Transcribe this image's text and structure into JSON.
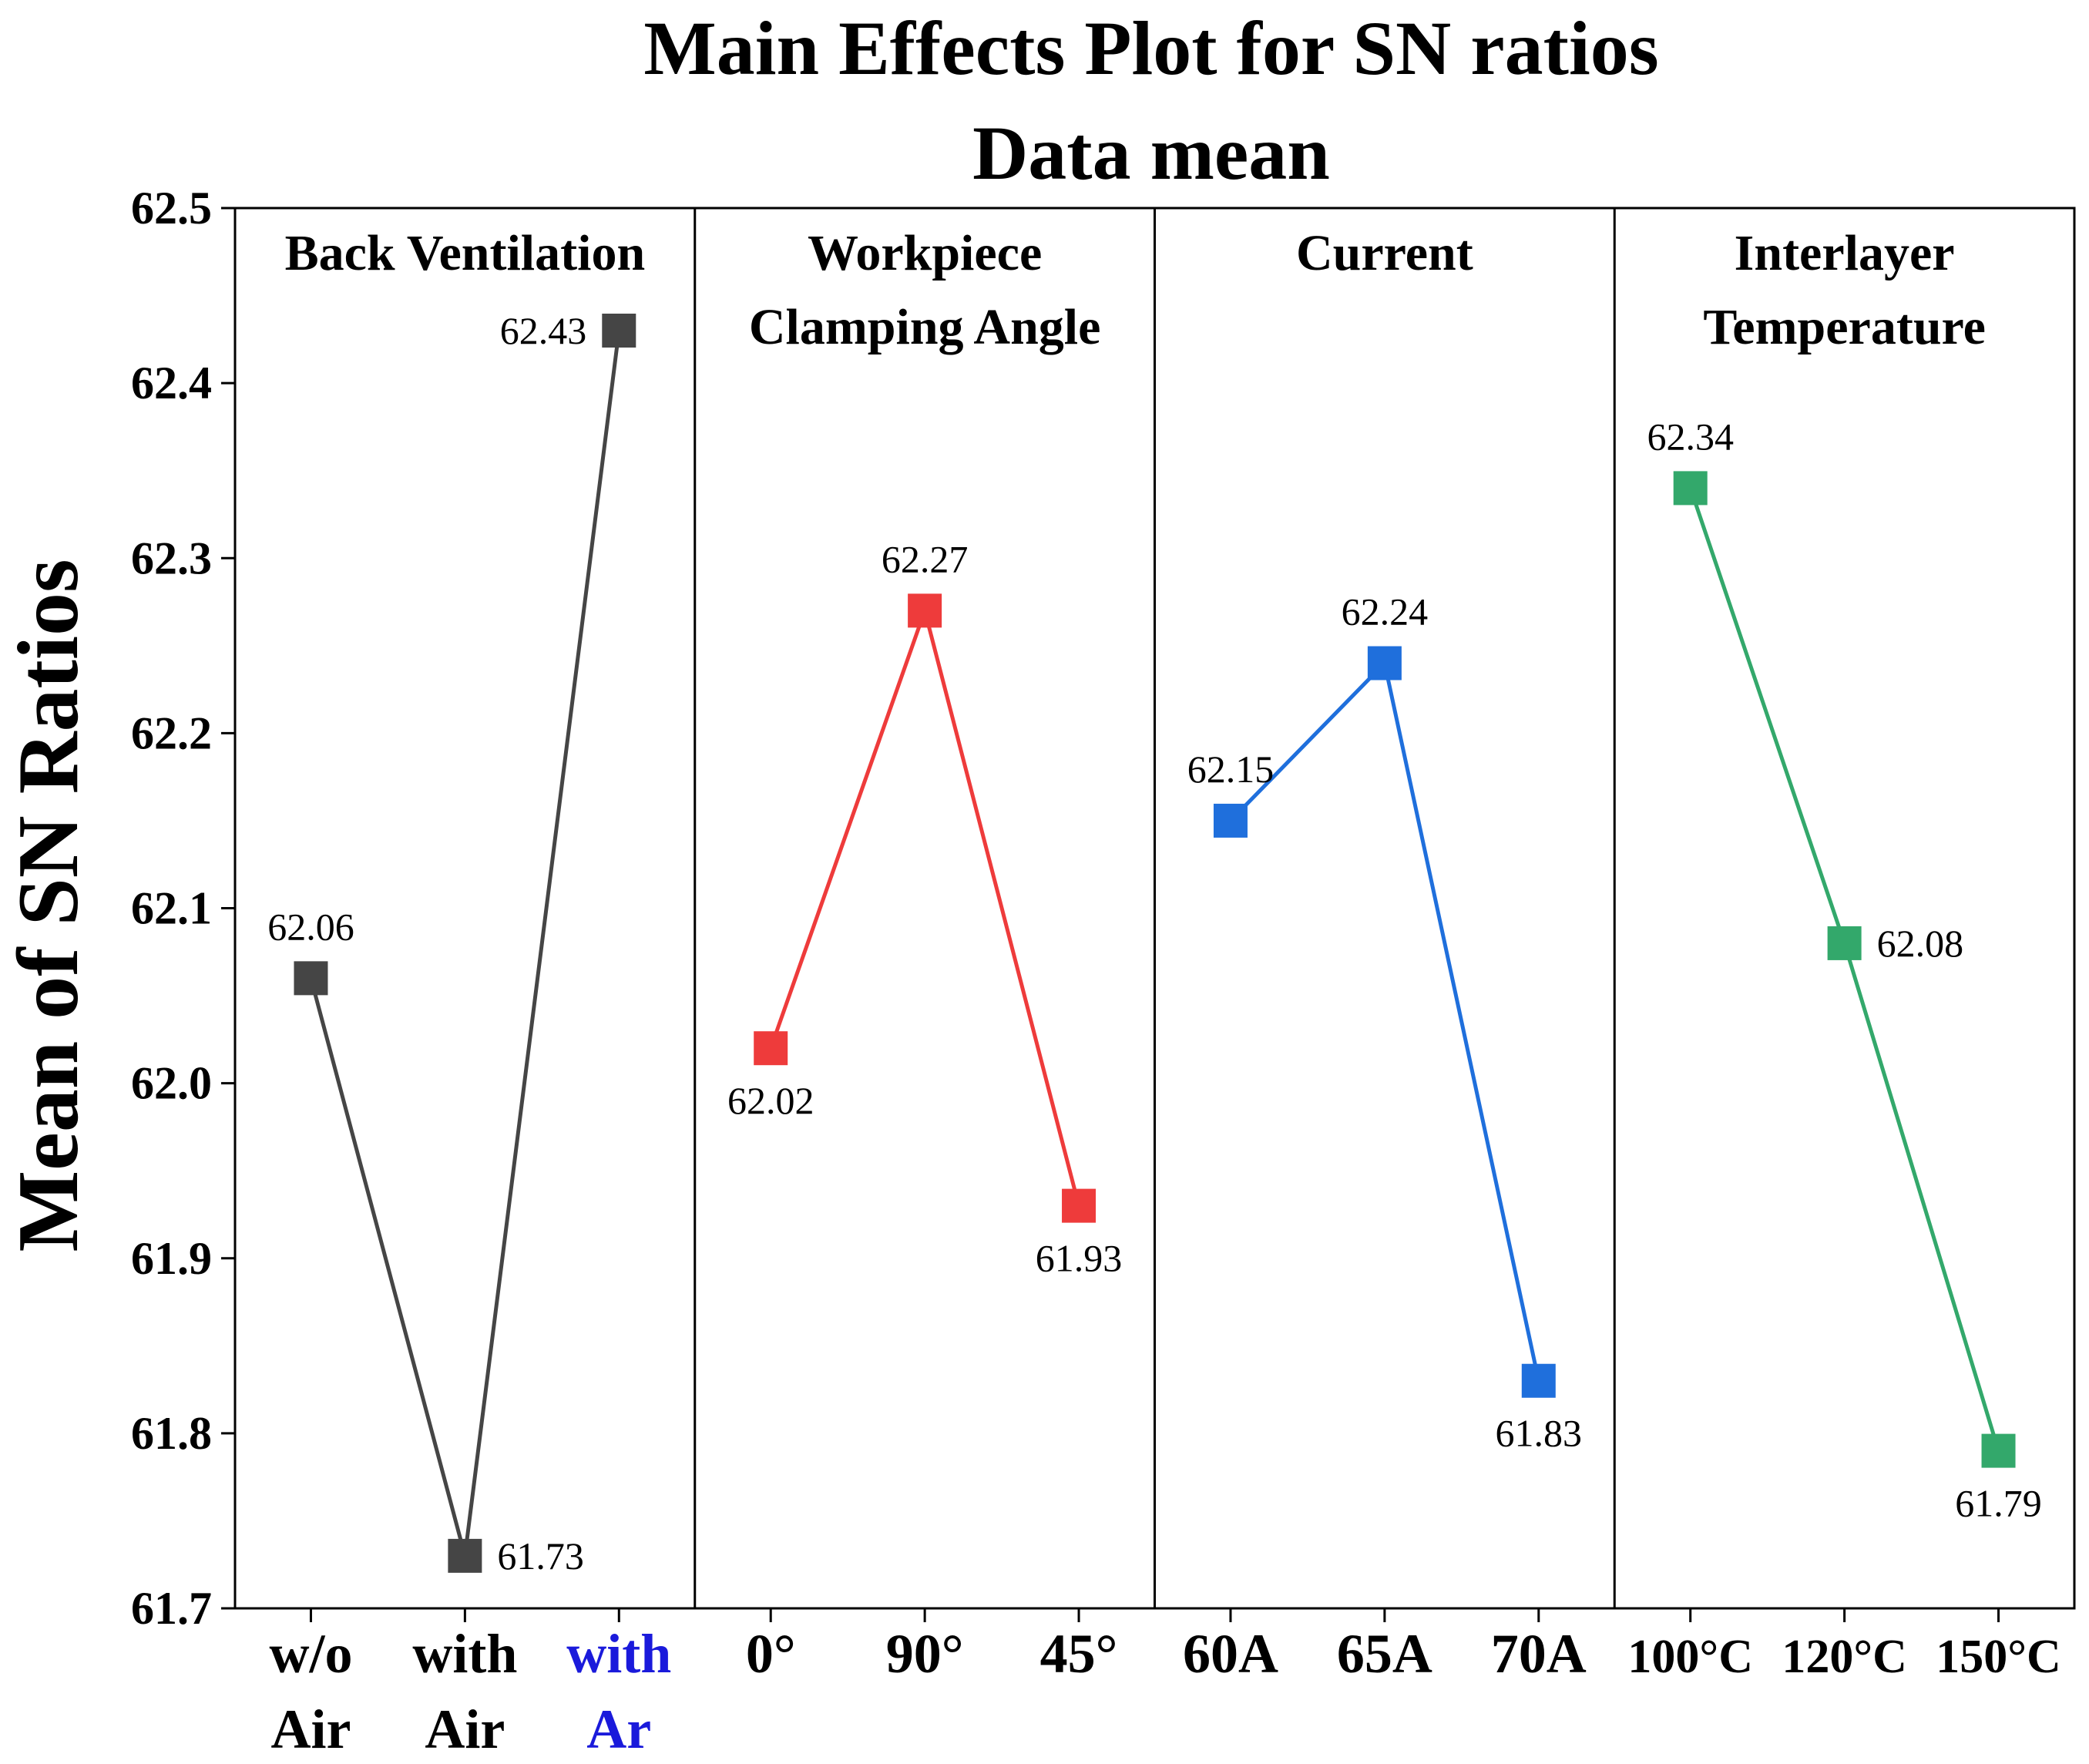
{
  "chart_data": {
    "type": "line",
    "title": "Main Effects Plot for SN ratios",
    "subtitle": "Data mean",
    "ylabel": "Mean of SN Ratios",
    "ylim": [
      61.7,
      62.5
    ],
    "yticks": [
      "61.7",
      "61.8",
      "61.9",
      "62.0",
      "62.1",
      "62.2",
      "62.3",
      "62.4",
      "62.5"
    ],
    "grid": false,
    "panels": [
      {
        "name": "Back Ventilation",
        "title_lines": [
          "Back Ventilation"
        ],
        "color": "#454545",
        "categories": [
          {
            "lines": [
              "w/o",
              "Air"
            ],
            "color": "#000000"
          },
          {
            "lines": [
              "with",
              "Air"
            ],
            "color": "#000000"
          },
          {
            "lines": [
              "with",
              "Ar"
            ],
            "color": "#1a1adb"
          }
        ],
        "values": [
          62.06,
          61.73,
          62.43
        ],
        "labels": [
          "62.06",
          "61.73",
          "62.43"
        ],
        "label_positions": [
          "above",
          "right",
          "left"
        ]
      },
      {
        "name": "Workpiece Clamping Angle",
        "title_lines": [
          "Workpiece",
          "Clamping Angle"
        ],
        "color": "#ee3b3b",
        "categories": [
          {
            "lines": [
              "0°"
            ],
            "color": "#000000"
          },
          {
            "lines": [
              "90°"
            ],
            "color": "#000000"
          },
          {
            "lines": [
              "45°"
            ],
            "color": "#000000"
          }
        ],
        "values": [
          62.02,
          62.27,
          61.93
        ],
        "labels": [
          "62.02",
          "62.27",
          "61.93"
        ],
        "label_positions": [
          "below",
          "above",
          "below"
        ]
      },
      {
        "name": "Current",
        "title_lines": [
          "Current"
        ],
        "color": "#1f6fdc",
        "categories": [
          {
            "lines": [
              "60A"
            ],
            "color": "#000000"
          },
          {
            "lines": [
              "65A"
            ],
            "color": "#000000"
          },
          {
            "lines": [
              "70A"
            ],
            "color": "#000000"
          }
        ],
        "values": [
          62.15,
          62.24,
          61.83
        ],
        "labels": [
          "62.15",
          "62.24",
          "61.83"
        ],
        "label_positions": [
          "above",
          "above",
          "below"
        ]
      },
      {
        "name": "Interlayer Temperature",
        "title_lines": [
          "Interlayer",
          "Temperature"
        ],
        "color": "#33a86b",
        "categories": [
          {
            "lines": [
              "100°C"
            ],
            "color": "#000000"
          },
          {
            "lines": [
              "120°C"
            ],
            "color": "#000000"
          },
          {
            "lines": [
              "150°C"
            ],
            "color": "#000000"
          }
        ],
        "values": [
          62.34,
          62.08,
          61.79
        ],
        "labels": [
          "62.34",
          "62.08",
          "61.79"
        ],
        "label_positions": [
          "above",
          "right",
          "below"
        ]
      }
    ]
  }
}
